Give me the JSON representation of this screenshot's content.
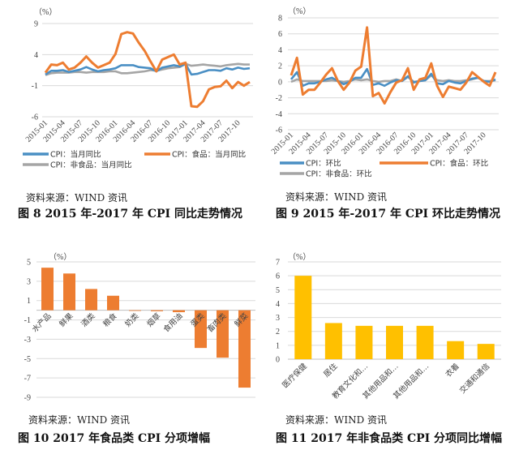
{
  "chart_data": [
    {
      "type": "line",
      "figure_label": "图 8    2015 年-2017 年 CPI 同比走势情况",
      "source": "资料来源：WIND 资讯",
      "unit": "（%）",
      "ylim": [
        -6,
        9
      ],
      "yticks": [
        "9",
        "4",
        "-1",
        "-6"
      ],
      "ytick_values": [
        9,
        4,
        -1,
        -6
      ],
      "grid": true,
      "legend_position": "bottom",
      "x": [
        "2015-01",
        "2015-02",
        "2015-03",
        "2015-04",
        "2015-05",
        "2015-06",
        "2015-07",
        "2015-08",
        "2015-09",
        "2015-10",
        "2015-11",
        "2015-12",
        "2016-01",
        "2016-02",
        "2016-03",
        "2016-04",
        "2016-05",
        "2016-06",
        "2016-07",
        "2016-08",
        "2016-09",
        "2016-10",
        "2016-11",
        "2016-12",
        "2017-01",
        "2017-02",
        "2017-03",
        "2017-04",
        "2017-05",
        "2017-06",
        "2017-07",
        "2017-08",
        "2017-09",
        "2017-10",
        "2017-11",
        "2017-12"
      ],
      "xticks": [
        "2015-01",
        "2015-04",
        "2015-07",
        "2015-10",
        "2016-01",
        "2016-04",
        "2016-07",
        "2016-10",
        "2017-01",
        "2017-04",
        "2017-07",
        "2017-10"
      ],
      "series": [
        {
          "name": "CPI：当月同比",
          "color": "#4a8fc4",
          "values": [
            0.8,
            1.4,
            1.4,
            1.5,
            1.2,
            1.4,
            1.6,
            2.0,
            1.6,
            1.3,
            1.5,
            1.6,
            1.8,
            2.3,
            2.3,
            2.3,
            2.0,
            1.9,
            1.8,
            1.3,
            1.9,
            2.1,
            2.3,
            2.1,
            2.5,
            0.8,
            0.9,
            1.2,
            1.5,
            1.5,
            1.4,
            1.8,
            1.6,
            1.9,
            1.7,
            1.8
          ]
        },
        {
          "name": "CPI：食品：当月同比",
          "color": "#ed7d31",
          "values": [
            1.1,
            2.4,
            2.3,
            2.7,
            1.6,
            1.9,
            2.7,
            3.7,
            2.7,
            1.9,
            2.3,
            2.7,
            4.1,
            7.3,
            7.6,
            7.4,
            5.9,
            4.6,
            2.9,
            1.3,
            3.2,
            3.6,
            4.0,
            2.4,
            2.7,
            -4.3,
            -4.4,
            -3.5,
            -1.6,
            -1.2,
            -1.1,
            -0.2,
            -1.4,
            -0.4,
            -1.0,
            -0.4
          ]
        },
        {
          "name": "CPI：非食品：当月同比",
          "color": "#a5a5a5",
          "values": [
            0.7,
            1.0,
            1.1,
            1.1,
            1.1,
            1.2,
            1.2,
            1.1,
            1.2,
            1.2,
            1.2,
            1.3,
            1.3,
            1.0,
            1.0,
            1.1,
            1.2,
            1.3,
            1.5,
            1.4,
            1.6,
            1.8,
            1.9,
            2.0,
            2.5,
            2.2,
            2.3,
            2.4,
            2.3,
            2.2,
            2.1,
            2.3,
            2.4,
            2.5,
            2.4,
            2.4
          ]
        }
      ]
    },
    {
      "type": "line",
      "figure_label": "图 9    2015 年-2017 年 CPI 环比走势情况",
      "source": "资料来源：WIND 资讯",
      "unit": "（%）",
      "ylim": [
        -6,
        8
      ],
      "yticks": [
        "8",
        "6",
        "4",
        "2",
        "0",
        "-2",
        "-4",
        "-6"
      ],
      "ytick_values": [
        8,
        6,
        4,
        2,
        0,
        -2,
        -4,
        -6
      ],
      "grid": true,
      "legend_position": "bottom",
      "x": [
        "2015-01",
        "2015-02",
        "2015-03",
        "2015-04",
        "2015-05",
        "2015-06",
        "2015-07",
        "2015-08",
        "2015-09",
        "2015-10",
        "2015-11",
        "2015-12",
        "2016-01",
        "2016-02",
        "2016-03",
        "2016-04",
        "2016-05",
        "2016-06",
        "2016-07",
        "2016-08",
        "2016-09",
        "2016-10",
        "2016-11",
        "2016-12",
        "2017-01",
        "2017-02",
        "2017-03",
        "2017-04",
        "2017-05",
        "2017-06",
        "2017-07",
        "2017-08",
        "2017-09",
        "2017-10",
        "2017-11",
        "2017-12"
      ],
      "xticks": [
        "2015-01",
        "2015-04",
        "2015-07",
        "2015-10",
        "2016-01",
        "2016-04",
        "2016-07",
        "2016-10",
        "2017-01",
        "2017-04",
        "2017-07",
        "2017-10"
      ],
      "series": [
        {
          "name": "CPI：环比",
          "color": "#4a8fc4",
          "values": [
            0.3,
            1.2,
            -0.5,
            -0.2,
            -0.2,
            0.0,
            0.3,
            0.5,
            0.1,
            -0.3,
            0.0,
            0.5,
            0.5,
            1.6,
            -0.4,
            -0.2,
            -0.5,
            -0.1,
            0.2,
            0.1,
            0.7,
            -0.1,
            0.1,
            0.2,
            1.0,
            -0.2,
            -0.3,
            0.1,
            -0.1,
            -0.2,
            0.1,
            0.4,
            0.5,
            0.1,
            0.0,
            0.3
          ]
        },
        {
          "name": "CPI：食品：环比",
          "color": "#ed7d31",
          "values": [
            0.8,
            3.0,
            -1.6,
            -1.0,
            -1.0,
            -0.1,
            0.9,
            1.7,
            0.1,
            -1.0,
            -0.1,
            1.4,
            1.9,
            6.8,
            -1.8,
            -1.4,
            -2.7,
            -1.3,
            -0.1,
            0.2,
            1.7,
            -1.0,
            0.3,
            0.5,
            2.3,
            -0.5,
            -1.9,
            -0.6,
            -0.8,
            -1.0,
            -0.1,
            1.2,
            0.6,
            0.0,
            -0.5,
            1.2
          ]
        },
        {
          "name": "CPI：非食品：环比",
          "color": "#a5a5a5",
          "values": [
            0.0,
            0.3,
            0.1,
            0.1,
            0.1,
            0.1,
            0.1,
            0.2,
            0.1,
            0.0,
            0.1,
            0.3,
            0.2,
            0.3,
            0.1,
            0.0,
            0.1,
            0.1,
            0.3,
            0.1,
            0.6,
            0.0,
            0.1,
            0.2,
            0.8,
            0.2,
            0.1,
            0.2,
            0.1,
            0.1,
            0.2,
            0.3,
            0.5,
            0.1,
            0.1,
            0.2
          ]
        }
      ]
    },
    {
      "type": "bar",
      "figure_label": "图 10    2017 年食品类 CPI 分项增幅",
      "source": "资料来源：WIND 资讯",
      "unit": "（%）",
      "ylim": [
        -9,
        5
      ],
      "yticks": [
        "5",
        "3",
        "1",
        "-1",
        "-3",
        "-5",
        "-7",
        "-9"
      ],
      "ytick_values": [
        5,
        3,
        1,
        -1,
        -3,
        -5,
        -7,
        -9
      ],
      "grid": true,
      "color": "#ed7d31",
      "categories": [
        "水产品",
        "鲜果",
        "酒类",
        "粮食",
        "奶类",
        "烟草",
        "食用油",
        "蛋类",
        "畜肉类",
        "鲜菜"
      ],
      "values": [
        4.4,
        3.8,
        2.2,
        1.5,
        0.0,
        -0.1,
        -0.2,
        -3.9,
        -4.9,
        -8.0
      ]
    },
    {
      "type": "bar",
      "figure_label": "图 11    2017 年非食品类 CPI 分项同比增幅",
      "source": "资料来源：WIND 资讯",
      "unit": "（%）",
      "ylim": [
        0,
        7
      ],
      "yticks": [
        "7",
        "6",
        "5",
        "4",
        "3",
        "2",
        "1",
        "0"
      ],
      "ytick_values": [
        7,
        6,
        5,
        4,
        3,
        2,
        1,
        0
      ],
      "grid": true,
      "color": "#ffc000",
      "categories": [
        "医疗保健",
        "居住",
        "教育文化和…",
        "其他用品和…",
        "其他用品和…",
        "衣着",
        "交通和通信"
      ],
      "values": [
        6.0,
        2.6,
        2.4,
        2.4,
        2.4,
        1.3,
        1.1
      ]
    }
  ]
}
